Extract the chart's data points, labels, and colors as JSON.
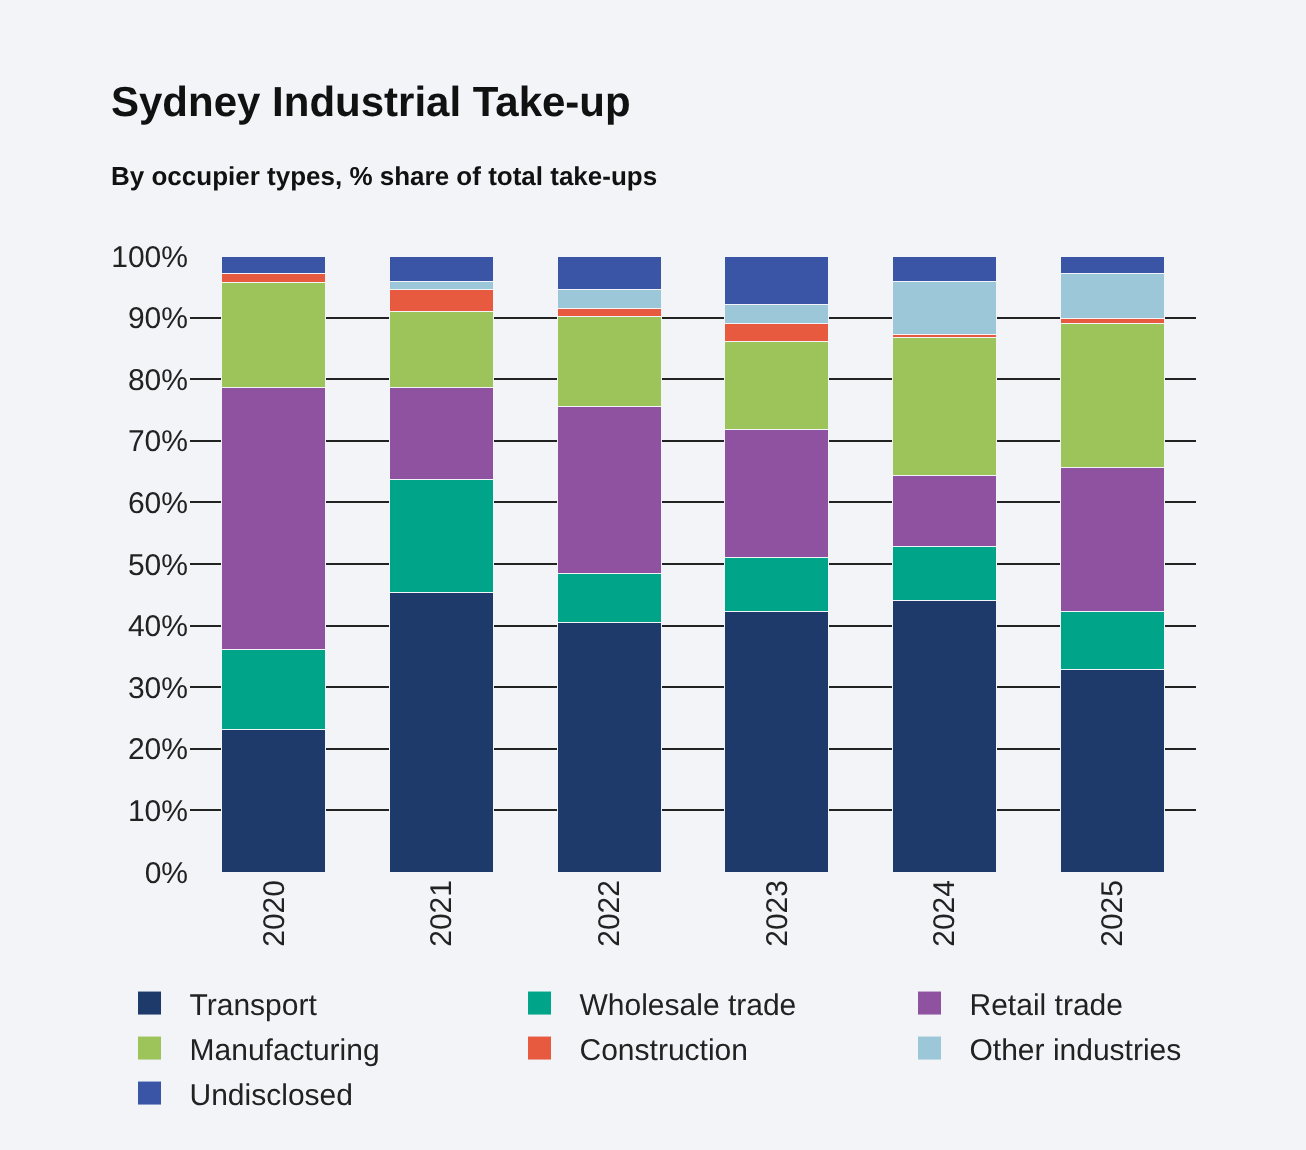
{
  "chart_data": {
    "type": "bar",
    "title": "Sydney Industrial Take-up",
    "subtitle": "By occupier types, % share of total take-ups",
    "categories": [
      "2020",
      "2021",
      "2022",
      "2023",
      "2024",
      "2025"
    ],
    "stacked": true,
    "series": [
      {
        "name": "Transport",
        "color": "#1e3a6a",
        "values": [
          23.2,
          45.4,
          40.5,
          42.3,
          44.1,
          32.9
        ]
      },
      {
        "name": "Wholesale trade",
        "color": "#00a589",
        "values": [
          13.0,
          18.4,
          8.0,
          8.7,
          8.7,
          9.4
        ]
      },
      {
        "name": "Retail trade",
        "color": "#8e52a0",
        "values": [
          42.5,
          14.9,
          27.1,
          20.8,
          11.6,
          23.3
        ]
      },
      {
        "name": "Manufacturing",
        "color": "#9dc45a",
        "values": [
          17.0,
          12.3,
          14.6,
          14.3,
          22.4,
          23.4
        ]
      },
      {
        "name": "Construction",
        "color": "#e85a40",
        "values": [
          1.4,
          3.6,
          1.3,
          2.9,
          0.4,
          0.8
        ]
      },
      {
        "name": "Other industries",
        "color": "#9bc7d8",
        "values": [
          0,
          1.3,
          3.1,
          3.2,
          8.7,
          7.3
        ]
      },
      {
        "name": "Undisclosed",
        "color": "#3a55a6",
        "values": [
          2.9,
          4.1,
          5.4,
          7.8,
          4.1,
          2.9
        ]
      }
    ],
    "ylim": [
      0,
      100
    ],
    "yticks": [
      {
        "value": 0,
        "label": "0%"
      },
      {
        "value": 10,
        "label": "10%"
      },
      {
        "value": 20,
        "label": "20%"
      },
      {
        "value": 30,
        "label": "30%"
      },
      {
        "value": 40,
        "label": "40%"
      },
      {
        "value": 50,
        "label": "50%"
      },
      {
        "value": 60,
        "label": "60%"
      },
      {
        "value": 70,
        "label": "70%"
      },
      {
        "value": 80,
        "label": "80%"
      },
      {
        "value": 90,
        "label": "90%"
      },
      {
        "value": 100,
        "label": "100%"
      }
    ],
    "grid": "y",
    "legend": "bottom"
  }
}
